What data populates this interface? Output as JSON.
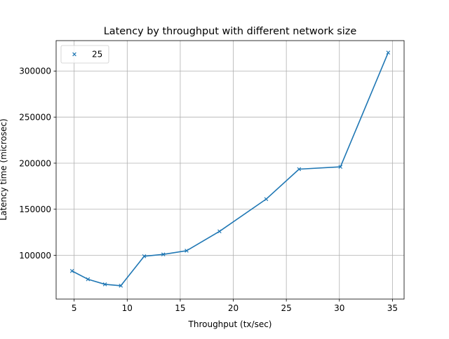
{
  "chart_data": {
    "type": "line",
    "title": "Latency by throughput with different network size",
    "xlabel": "Throughput (tx/sec)",
    "ylabel": "Latency time (microsec)",
    "xlim": [
      3.3,
      36.1
    ],
    "ylim": [
      52500,
      333000
    ],
    "xticks": [
      5,
      10,
      15,
      20,
      25,
      30,
      35
    ],
    "xtick_labels": [
      "5",
      "10",
      "15",
      "20",
      "25",
      "30",
      "35"
    ],
    "yticks": [
      100000,
      150000,
      200000,
      250000,
      300000
    ],
    "ytick_labels": [
      "100000",
      "150000",
      "200000",
      "250000",
      "300000"
    ],
    "grid": true,
    "legend": {
      "position": "top-left"
    },
    "colors": {
      "series": "#1f77b4",
      "grid": "#b0b0b0",
      "axes": "#000000"
    },
    "marker": "x",
    "series": [
      {
        "name": "25",
        "x": [
          4.8,
          6.3,
          7.9,
          9.4,
          11.6,
          13.4,
          15.6,
          18.7,
          23.1,
          26.2,
          30.1,
          34.6
        ],
        "y": [
          83000,
          74000,
          68500,
          67000,
          99000,
          101000,
          105000,
          126000,
          161000,
          193500,
          196000,
          320000
        ]
      }
    ]
  }
}
